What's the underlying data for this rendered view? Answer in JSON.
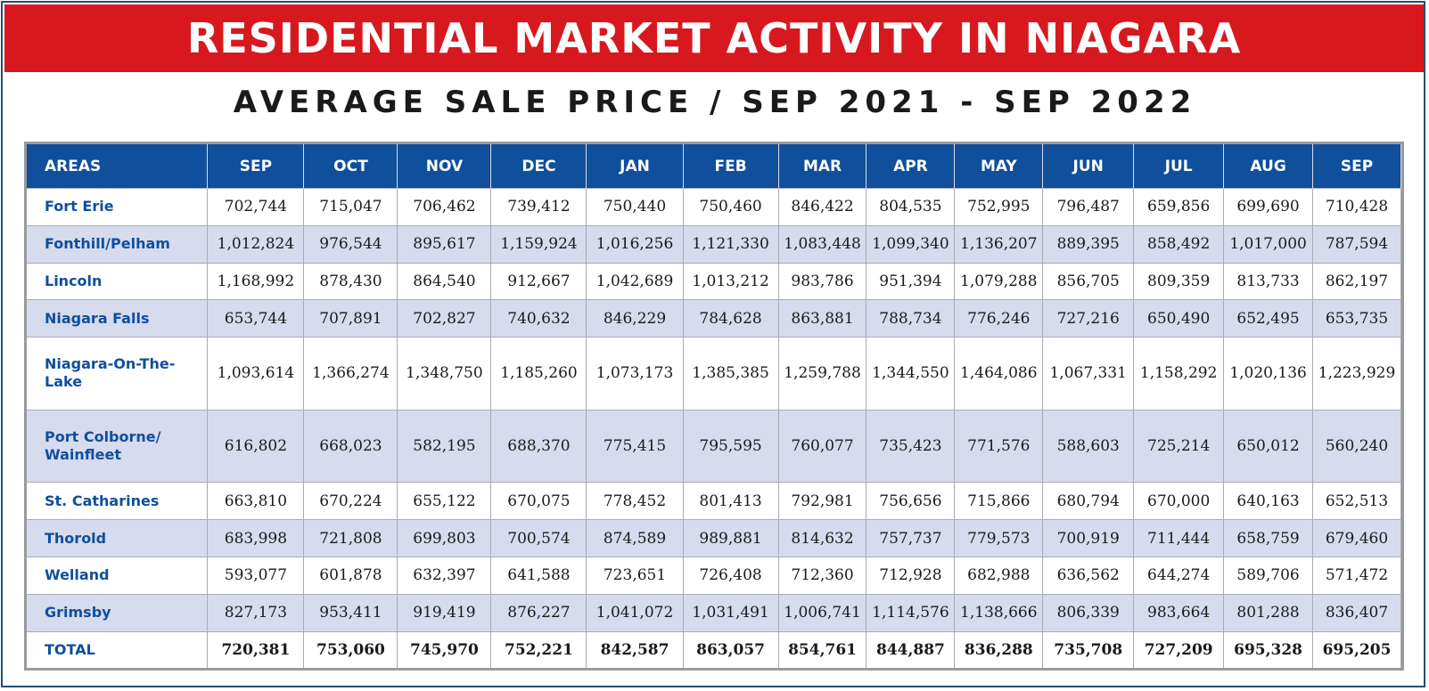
{
  "title": "RESIDENTIAL MARKET ACTIVITY IN NIAGARA",
  "subtitle": "AVERAGE SALE PRICE / SEP 2021 - SEP 2022",
  "colors": {
    "banner": "#d7191f",
    "header": "#0f4f9c",
    "shade": "#d6dbed",
    "area_text": "#0f4f9c"
  },
  "table": {
    "headers": [
      "AREAS",
      "SEP",
      "OCT",
      "NOV",
      "DEC",
      "JAN",
      "FEB",
      "MAR",
      "APR",
      "MAY",
      "JUN",
      "JUL",
      "AUG",
      "SEP"
    ],
    "rows": [
      [
        "Fort Erie",
        "702,744",
        "715,047",
        "706,462",
        "739,412",
        "750,440",
        "750,460",
        "846,422",
        "804,535",
        "752,995",
        "796,487",
        "659,856",
        "699,690",
        "710,428"
      ],
      [
        "Fonthill/Pelham",
        "1,012,824",
        "976,544",
        "895,617",
        "1,159,924",
        "1,016,256",
        "1,121,330",
        "1,083,448",
        "1,099,340",
        "1,136,207",
        "889,395",
        "858,492",
        "1,017,000",
        "787,594"
      ],
      [
        "Lincoln",
        "1,168,992",
        "878,430",
        "864,540",
        "912,667",
        "1,042,689",
        "1,013,212",
        "983,786",
        "951,394",
        "1,079,288",
        "856,705",
        "809,359",
        "813,733",
        "862,197"
      ],
      [
        "Niagara Falls",
        "653,744",
        "707,891",
        "702,827",
        "740,632",
        "846,229",
        "784,628",
        "863,881",
        "788,734",
        "776,246",
        "727,216",
        "650,490",
        "652,495",
        "653,735"
      ],
      [
        "Niagara-On-The-Lake",
        "1,093,614",
        "1,366,274",
        "1,348,750",
        "1,185,260",
        "1,073,173",
        "1,385,385",
        "1,259,788",
        "1,344,550",
        "1,464,086",
        "1,067,331",
        "1,158,292",
        "1,020,136",
        "1,223,929"
      ],
      [
        "Port Colborne/ Wainfleet",
        "616,802",
        "668,023",
        "582,195",
        "688,370",
        "775,415",
        "795,595",
        "760,077",
        "735,423",
        "771,576",
        "588,603",
        "725,214",
        "650,012",
        "560,240"
      ],
      [
        "St. Catharines",
        "663,810",
        "670,224",
        "655,122",
        "670,075",
        "778,452",
        "801,413",
        "792,981",
        "756,656",
        "715,866",
        "680,794",
        "670,000",
        "640,163",
        "652,513"
      ],
      [
        "Thorold",
        "683,998",
        "721,808",
        "699,803",
        "700,574",
        "874,589",
        "989,881",
        "814,632",
        "757,737",
        "779,573",
        "700,919",
        "711,444",
        "658,759",
        "679,460"
      ],
      [
        "Welland",
        "593,077",
        "601,878",
        "632,397",
        "641,588",
        "723,651",
        "726,408",
        "712,360",
        "712,928",
        "682,988",
        "636,562",
        "644,274",
        "589,706",
        "571,472"
      ],
      [
        "Grimsby",
        "827,173",
        "953,411",
        "919,419",
        "876,227",
        "1,041,072",
        "1,031,491",
        "1,006,741",
        "1,114,576",
        "1,138,666",
        "806,339",
        "983,664",
        "801,288",
        "836,407"
      ]
    ],
    "total": [
      "TOTAL",
      "720,381",
      "753,060",
      "745,970",
      "752,221",
      "842,587",
      "863,057",
      "854,761",
      "844,887",
      "836,288",
      "735,708",
      "727,209",
      "695,328",
      "695,205"
    ]
  }
}
